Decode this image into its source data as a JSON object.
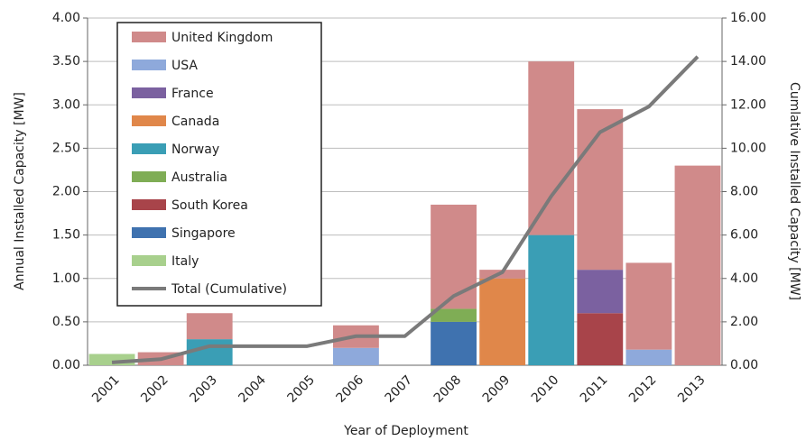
{
  "chart_data": {
    "type": "bar",
    "stacked": true,
    "xlabel": "Year of Deployment",
    "ylabel": "Annual Installed Capacity [MW]",
    "y2label": "Cumlative Installed Capacity [MW]",
    "categories": [
      "2001",
      "2002",
      "2003",
      "2004",
      "2005",
      "2006",
      "2007",
      "2008",
      "2009",
      "2010",
      "2011",
      "2012",
      "2013"
    ],
    "ylim": [
      0,
      4
    ],
    "yticks": [
      {
        "value": 0,
        "label": "0.00"
      },
      {
        "value": 0.5,
        "label": "0.50"
      },
      {
        "value": 1,
        "label": "1.00"
      },
      {
        "value": 1.5,
        "label": "1.50"
      },
      {
        "value": 2,
        "label": "2.00"
      },
      {
        "value": 2.5,
        "label": "2.50"
      },
      {
        "value": 3,
        "label": "3.00"
      },
      {
        "value": 3.5,
        "label": "3.50"
      },
      {
        "value": 4,
        "label": "4.00"
      }
    ],
    "y2lim": [
      0,
      16
    ],
    "y2ticks": [
      {
        "value": 0,
        "label": "0.00"
      },
      {
        "value": 2,
        "label": "2.00"
      },
      {
        "value": 4,
        "label": "4.00"
      },
      {
        "value": 6,
        "label": "6.00"
      },
      {
        "value": 8,
        "label": "8.00"
      },
      {
        "value": 10,
        "label": "10.00"
      },
      {
        "value": 12,
        "label": "12.00"
      },
      {
        "value": 14,
        "label": "14.00"
      },
      {
        "value": 16,
        "label": "16.00"
      }
    ],
    "grid": true,
    "legend": "upper left",
    "series": [
      {
        "name": "United Kingdom",
        "color": "#d08a8a",
        "values": [
          0,
          0.15,
          0.3,
          0,
          0,
          0.26,
          0,
          1.2,
          0.1,
          2.0,
          1.85,
          1.0,
          2.3
        ]
      },
      {
        "name": "USA",
        "color": "#8ea9db",
        "values": [
          0,
          0,
          0,
          0,
          0,
          0.2,
          0,
          0,
          0,
          0,
          0,
          0.18,
          0
        ]
      },
      {
        "name": "France",
        "color": "#7b61a0",
        "values": [
          0,
          0,
          0,
          0,
          0,
          0,
          0,
          0,
          0,
          0,
          0.5,
          0,
          0
        ]
      },
      {
        "name": "Canada",
        "color": "#e0874a",
        "values": [
          0,
          0,
          0,
          0,
          0,
          0,
          0,
          0,
          1.0,
          0,
          0,
          0,
          0
        ]
      },
      {
        "name": "Norway",
        "color": "#3a9eb5",
        "values": [
          0,
          0,
          0.3,
          0,
          0,
          0,
          0,
          0,
          0,
          1.5,
          0,
          0,
          0
        ]
      },
      {
        "name": "Australia",
        "color": "#7fad55",
        "values": [
          0,
          0,
          0,
          0,
          0,
          0,
          0,
          0.15,
          0,
          0,
          0,
          0,
          0
        ]
      },
      {
        "name": "South Korea",
        "color": "#a8444a",
        "values": [
          0,
          0,
          0,
          0,
          0,
          0,
          0,
          0,
          0,
          0,
          0.6,
          0,
          0
        ]
      },
      {
        "name": "Singapore",
        "color": "#3f72af",
        "values": [
          0,
          0,
          0,
          0,
          0,
          0,
          0,
          0.5,
          0,
          0,
          0,
          0,
          0
        ]
      },
      {
        "name": "Italy",
        "color": "#a8d08d",
        "values": [
          0.13,
          0,
          0,
          0,
          0,
          0,
          0,
          0,
          0,
          0,
          0,
          0,
          0
        ]
      },
      {
        "name": "Total (Cumulative)",
        "color": "#7a7a7a",
        "type": "line",
        "axis": "y2",
        "values": [
          0.13,
          0.28,
          0.88,
          0.88,
          0.88,
          1.34,
          1.34,
          3.19,
          4.29,
          7.79,
          10.74,
          11.92,
          14.22
        ]
      }
    ]
  }
}
